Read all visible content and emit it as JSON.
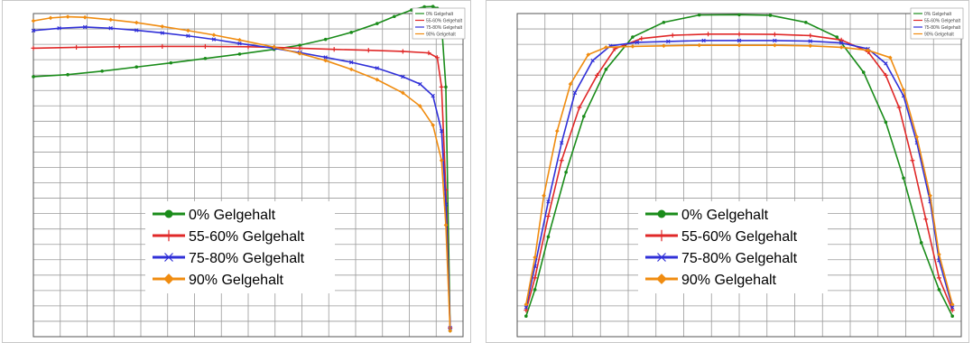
{
  "chart_data": [
    {
      "type": "line",
      "title": "",
      "xlabel": "",
      "ylabel": "",
      "grid": true,
      "legend_position": "center",
      "xlim": [
        0,
        100
      ],
      "ylim": [
        -100,
        10
      ],
      "series": [
        {
          "name": "0% Gelgehalt",
          "color": "#1a8c1a",
          "marker": "circle",
          "x": [
            0,
            8,
            16,
            24,
            32,
            40,
            48,
            56,
            62,
            68,
            74,
            80,
            84,
            88,
            91,
            93,
            94,
            95,
            96,
            97
          ],
          "y": [
            -11.5,
            -10.8,
            -9.6,
            -8.2,
            -6.8,
            -5.3,
            -3.8,
            -2.2,
            -0.8,
            1.2,
            3.6,
            6.6,
            9.0,
            11.2,
            12.3,
            12.4,
            11.8,
            6.5,
            -15.0,
            -98.0
          ]
        },
        {
          "name": "55-60% Gelgehalt",
          "color": "#e02828",
          "marker": "plus",
          "x": [
            0,
            10,
            20,
            30,
            40,
            50,
            56,
            62,
            70,
            78,
            86,
            92,
            94,
            95,
            96,
            97
          ],
          "y": [
            -1.8,
            -1.5,
            -1.3,
            -1.2,
            -1.2,
            -1.3,
            -1.5,
            -1.8,
            -2.2,
            -2.5,
            -2.9,
            -3.4,
            -5.0,
            -15.0,
            -50.0,
            -97.0
          ]
        },
        {
          "name": "75-80% Gelgehalt",
          "color": "#3030d8",
          "marker": "cross",
          "x": [
            0,
            6,
            12,
            18,
            24,
            30,
            36,
            42,
            48,
            56,
            62,
            68,
            74,
            80,
            86,
            90,
            93,
            95,
            96,
            97
          ],
          "y": [
            4.2,
            5.0,
            5.4,
            5.0,
            4.3,
            3.4,
            2.4,
            1.2,
            -0.2,
            -1.8,
            -3.3,
            -4.9,
            -6.6,
            -8.6,
            -11.5,
            -14.0,
            -18.0,
            -30.0,
            -55.0,
            -97.0
          ]
        },
        {
          "name": "90% Gelgehalt",
          "color": "#f08c10",
          "marker": "diamond",
          "x": [
            0,
            4,
            8,
            12,
            18,
            24,
            30,
            36,
            42,
            48,
            56,
            62,
            68,
            74,
            80,
            86,
            90,
            93,
            95,
            96,
            97
          ],
          "y": [
            7.5,
            8.5,
            8.9,
            8.7,
            7.9,
            6.9,
            5.6,
            4.2,
            2.7,
            1.0,
            -1.4,
            -3.6,
            -6.0,
            -9.0,
            -12.5,
            -17.0,
            -21.5,
            -28.0,
            -40.0,
            -62.0,
            -98.0
          ]
        }
      ]
    },
    {
      "type": "line",
      "title": "",
      "xlabel": "",
      "ylabel": "",
      "grid": true,
      "legend_position": "center",
      "xlim": [
        0,
        100
      ],
      "ylim": [
        -100,
        10
      ],
      "series": [
        {
          "name": "0% Gelgehalt",
          "color": "#1a8c1a",
          "marker": "circle",
          "x": [
            2,
            4,
            7,
            11,
            15,
            20,
            26,
            33,
            41,
            50,
            57,
            65,
            72,
            78,
            83,
            87,
            91,
            95,
            98
          ],
          "y": [
            -93,
            -84,
            -66,
            -44,
            -25,
            -9,
            2,
            7,
            9.5,
            9.6,
            9.4,
            7,
            2,
            -10,
            -27,
            -46,
            -68,
            -84,
            -93
          ]
        },
        {
          "name": "55-60% Gelgehalt",
          "color": "#e02828",
          "marker": "plus",
          "x": [
            2,
            4,
            7,
            10,
            14,
            18,
            22,
            28,
            35,
            43,
            50,
            58,
            66,
            73,
            79,
            83,
            86,
            89,
            92,
            95,
            98
          ],
          "y": [
            -91,
            -80,
            -59,
            -40,
            -22,
            -11,
            -2,
            1.5,
            2.6,
            3.0,
            3.0,
            2.9,
            2.5,
            1.0,
            -3,
            -11,
            -22,
            -40,
            -60,
            -80,
            -91
          ]
        },
        {
          "name": "75-80% Gelgehalt",
          "color": "#3030d8",
          "marker": "cross",
          "x": [
            2,
            4,
            7,
            10,
            13,
            17,
            21,
            27,
            34,
            42,
            50,
            58,
            66,
            73,
            79,
            83,
            87,
            90,
            93,
            95,
            98
          ],
          "y": [
            -90,
            -76,
            -54,
            -34,
            -17,
            -6,
            -1,
            0.2,
            0.5,
            0.8,
            0.8,
            0.8,
            0.6,
            0.0,
            -2,
            -7,
            -18,
            -34,
            -54,
            -74,
            -90
          ]
        },
        {
          "name": "90% Gelgehalt",
          "color": "#f08c10",
          "marker": "diamond",
          "x": [
            2,
            4,
            6,
            9,
            12,
            16,
            20,
            26,
            33,
            41,
            50,
            58,
            66,
            73,
            79,
            84,
            87,
            90,
            93,
            95,
            98
          ],
          "y": [
            -89,
            -73,
            -52,
            -30,
            -14,
            -4,
            -1.5,
            -1.2,
            -1.0,
            -0.8,
            -0.8,
            -0.8,
            -1.0,
            -1.5,
            -2.5,
            -5,
            -16,
            -32,
            -52,
            -72,
            -89
          ]
        }
      ]
    }
  ]
}
